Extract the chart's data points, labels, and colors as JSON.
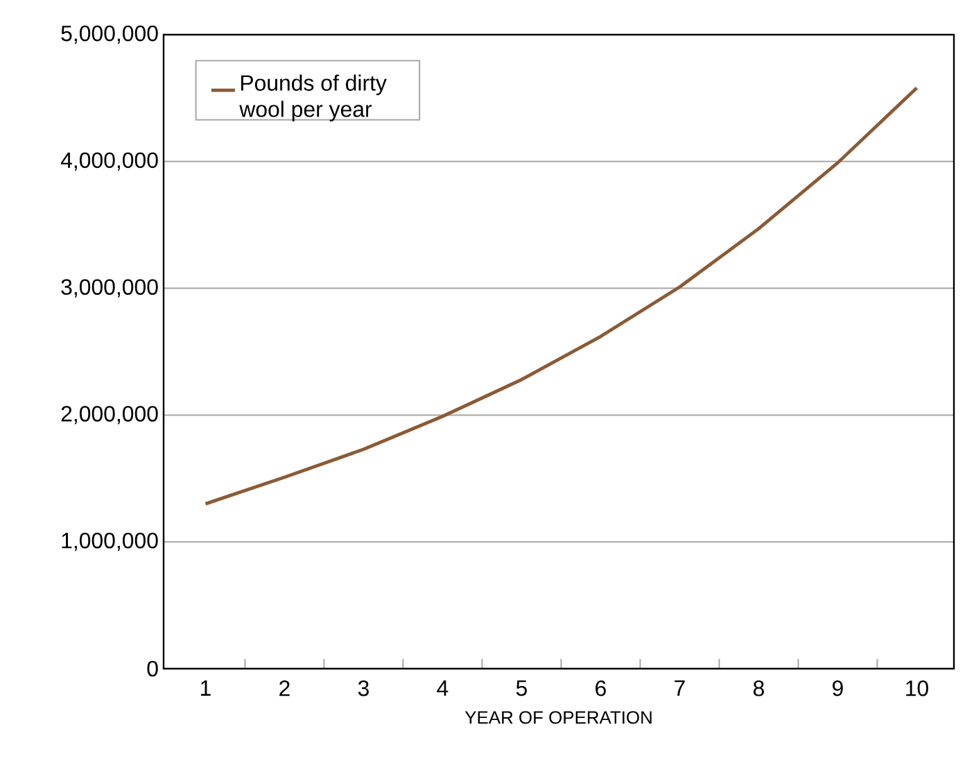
{
  "chart_data": {
    "type": "line",
    "xlabel": "YEAR OF OPERATION",
    "categories": [
      "1",
      "2",
      "3",
      "4",
      "5",
      "6",
      "7",
      "8",
      "9",
      "10"
    ],
    "series": [
      {
        "name": "Pounds of dirty wool per year",
        "color": "#8b5a35",
        "values": [
          1300000,
          1510000,
          1730000,
          1990000,
          2280000,
          2620000,
          3010000,
          3470000,
          3990000,
          4580000
        ]
      }
    ],
    "ylim": [
      0,
      5000000
    ],
    "yticks": [
      {
        "value": 0,
        "label": "0"
      },
      {
        "value": 1000000,
        "label": "1,000,000"
      },
      {
        "value": 2000000,
        "label": "2,000,000"
      },
      {
        "value": 3000000,
        "label": "3,000,000"
      },
      {
        "value": 4000000,
        "label": "4,000,000"
      },
      {
        "value": 5000000,
        "label": "5,000,000"
      }
    ],
    "grid": "y",
    "legend": "top left",
    "marker": "none",
    "line_style": "solid"
  }
}
